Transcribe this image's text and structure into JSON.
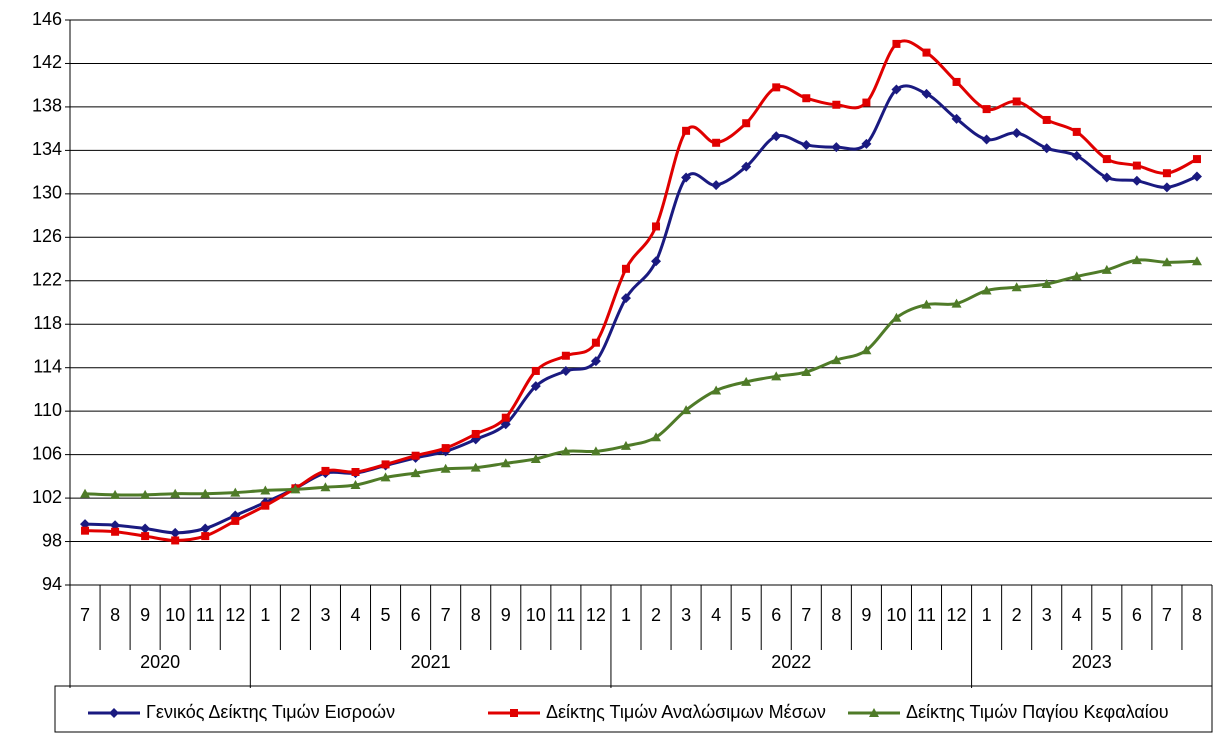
{
  "chart_data": {
    "type": "line",
    "categories": [
      "7",
      "8",
      "9",
      "10",
      "11",
      "12",
      "1",
      "2",
      "3",
      "4",
      "5",
      "6",
      "7",
      "8",
      "9",
      "10",
      "11",
      "12",
      "1",
      "2",
      "3",
      "4",
      "5",
      "6",
      "7",
      "8",
      "9",
      "10",
      "11",
      "12",
      "1",
      "2",
      "3",
      "4",
      "5",
      "6",
      "7",
      "8"
    ],
    "year_labels": [
      "2020",
      "2021",
      "2022",
      "2023"
    ],
    "series": [
      {
        "name": "Γενικός Δείκτης Τιμών Εισροών",
        "color": "#1a1a80",
        "marker": "diamond",
        "values": [
          99.6,
          99.5,
          99.2,
          98.8,
          99.2,
          100.4,
          101.6,
          102.9,
          104.3,
          104.3,
          105.0,
          105.7,
          106.3,
          107.4,
          108.8,
          112.3,
          113.7,
          114.6,
          120.4,
          123.8,
          131.5,
          130.8,
          132.5,
          135.3,
          134.5,
          134.3,
          134.6,
          139.6,
          139.2,
          136.9,
          135.0,
          135.6,
          134.2,
          133.5,
          131.5,
          131.2,
          130.6,
          131.6
        ]
      },
      {
        "name": "Δείκτης Τιμών Αναλώσιμων Μέσων",
        "color": "#e00000",
        "marker": "square",
        "values": [
          99.0,
          98.9,
          98.5,
          98.1,
          98.5,
          99.9,
          101.3,
          102.9,
          104.5,
          104.4,
          105.1,
          105.9,
          106.6,
          107.9,
          109.4,
          113.7,
          115.1,
          116.3,
          123.1,
          127.0,
          135.8,
          134.7,
          136.5,
          139.8,
          138.8,
          138.2,
          138.4,
          143.8,
          143.0,
          140.3,
          137.8,
          138.5,
          136.8,
          135.7,
          133.2,
          132.6,
          131.9,
          133.2
        ]
      },
      {
        "name": "Δείκτης Τιμών Παγίου Κεφαλαίου",
        "color": "#4f7b28",
        "marker": "triangle",
        "values": [
          102.4,
          102.3,
          102.3,
          102.4,
          102.4,
          102.5,
          102.7,
          102.8,
          103.0,
          103.2,
          103.9,
          104.3,
          104.7,
          104.8,
          105.2,
          105.6,
          106.3,
          106.3,
          106.8,
          107.6,
          110.1,
          111.9,
          112.7,
          113.2,
          113.6,
          114.7,
          115.6,
          118.6,
          119.8,
          119.9,
          121.1,
          121.4,
          121.7,
          122.4,
          123.0,
          123.9,
          123.7,
          123.8
        ]
      }
    ],
    "ylim": [
      94,
      146
    ],
    "yticks": [
      94,
      98,
      102,
      106,
      110,
      114,
      118,
      122,
      126,
      130,
      134,
      138,
      142,
      146
    ],
    "grid": true,
    "legend": "bottom"
  }
}
